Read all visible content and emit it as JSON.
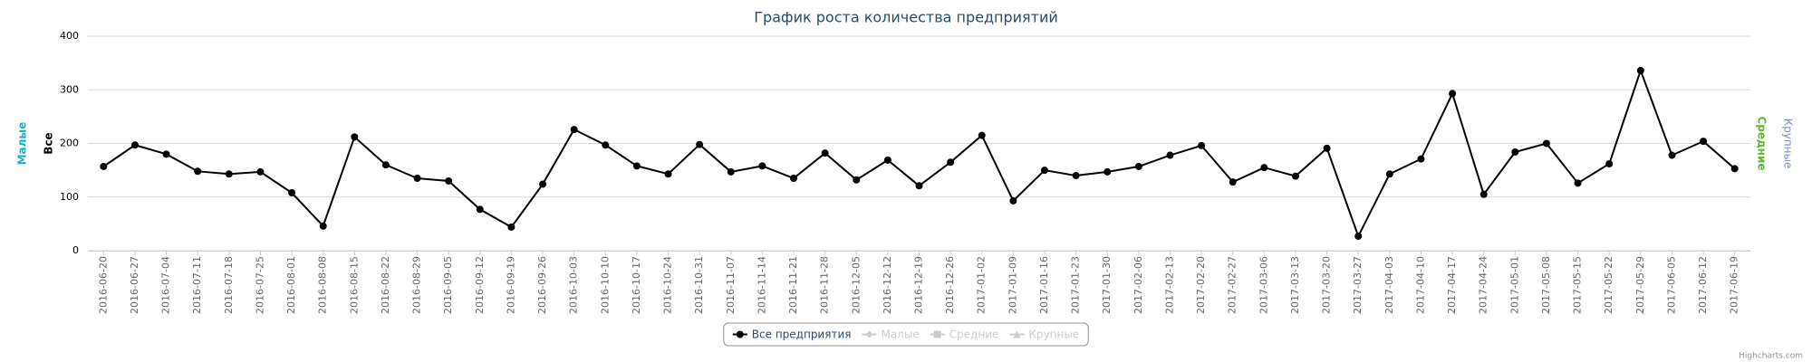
{
  "chart_data": {
    "type": "line",
    "title": "График роста количества предприятий",
    "categories": [
      "2016-06-20",
      "2016-06-27",
      "2016-07-04",
      "2016-07-11",
      "2016-07-18",
      "2016-07-25",
      "2016-08-01",
      "2016-08-08",
      "2016-08-15",
      "2016-08-22",
      "2016-08-29",
      "2016-09-05",
      "2016-09-12",
      "2016-09-19",
      "2016-09-26",
      "2016-10-03",
      "2016-10-10",
      "2016-10-17",
      "2016-10-24",
      "2016-10-31",
      "2016-11-07",
      "2016-11-14",
      "2016-11-21",
      "2016-11-28",
      "2016-12-05",
      "2016-12-12",
      "2016-12-19",
      "2016-12-26",
      "2017-01-02",
      "2017-01-09",
      "2017-01-16",
      "2017-01-23",
      "2017-01-30",
      "2017-02-06",
      "2017-02-13",
      "2017-02-20",
      "2017-02-27",
      "2017-03-06",
      "2017-03-13",
      "2017-03-20",
      "2017-03-27",
      "2017-04-03",
      "2017-04-10",
      "2017-04-17",
      "2017-04-24",
      "2017-05-01",
      "2017-05-08",
      "2017-05-15",
      "2017-05-22",
      "2017-05-29",
      "2017-06-05",
      "2017-06-12",
      "2017-06-19"
    ],
    "series": [
      {
        "name": "Все предприятия",
        "color": "#000000",
        "marker": "circle",
        "values": [
          157,
          197,
          180,
          148,
          143,
          147,
          108,
          46,
          212,
          160,
          135,
          130,
          77,
          44,
          124,
          226,
          197,
          158,
          143,
          198,
          147,
          158,
          135,
          182,
          132,
          169,
          121,
          165,
          215,
          93,
          150,
          140,
          147,
          157,
          178,
          196,
          128,
          155,
          139,
          191,
          27,
          143,
          171,
          293,
          105,
          184,
          200,
          126,
          162,
          336,
          178,
          204,
          153
        ]
      }
    ],
    "hidden_series": [
      {
        "name": "Малые",
        "marker": "diamond"
      },
      {
        "name": "Средние",
        "marker": "square"
      },
      {
        "name": "Крупные",
        "marker": "triangle"
      }
    ],
    "y_axis_titles_left": [
      {
        "label": "Малые",
        "color": "#1aadce"
      },
      {
        "label": "Все",
        "color": "#000000"
      }
    ],
    "y_axis_titles_right": [
      {
        "label": "Средние",
        "color": "#5fb82e"
      },
      {
        "label": "Крупные",
        "color": "#7f8fc8"
      }
    ],
    "ylim": [
      0,
      400
    ],
    "yticks": [
      0,
      100,
      200,
      300,
      400
    ],
    "grid": true,
    "credits": "Highcharts.com"
  }
}
